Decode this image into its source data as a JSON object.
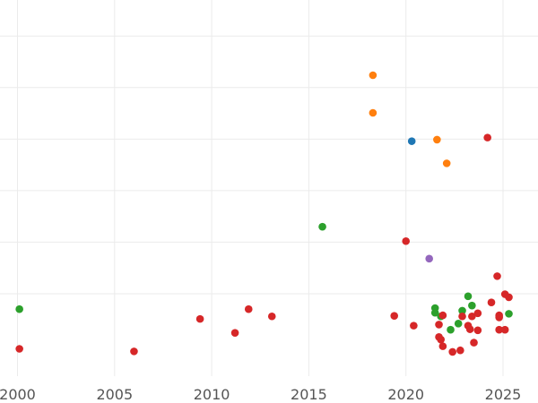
{
  "chart_data": {
    "type": "scatter",
    "title": "",
    "xlabel": "",
    "ylabel": "",
    "xlim": [
      1999.1,
      2026.8
    ],
    "ylim": [
      -0.6,
      6.7
    ],
    "grid": true,
    "x_ticks": [
      2000,
      2005,
      2010,
      2015,
      2020,
      2025
    ],
    "x_tick_labels": [
      "2000",
      "2005",
      "2010",
      "2015",
      "2020",
      "2025"
    ],
    "y_gridlines": [
      1,
      2,
      3,
      4,
      5,
      6
    ],
    "y_tick_labels_visible": false,
    "legend": "none",
    "colors": {
      "blue": "#1f77b4",
      "orange": "#ff7f0e",
      "green": "#2ca02c",
      "red": "#d62728",
      "purple": "#9467bd"
    },
    "series": [
      {
        "name": "blue",
        "points": [
          [
            2020.3,
            3.96
          ]
        ]
      },
      {
        "name": "orange",
        "points": [
          [
            2018.3,
            5.24
          ],
          [
            2018.3,
            4.51
          ],
          [
            2021.6,
            3.99
          ],
          [
            2022.1,
            3.53
          ]
        ]
      },
      {
        "name": "green",
        "points": [
          [
            2000.1,
            0.7
          ],
          [
            2015.7,
            2.3
          ],
          [
            2021.5,
            0.72
          ],
          [
            2021.5,
            0.63
          ],
          [
            2021.8,
            0.56
          ],
          [
            2022.3,
            0.3
          ],
          [
            2022.7,
            0.42
          ],
          [
            2022.9,
            0.67
          ],
          [
            2023.2,
            0.95
          ],
          [
            2023.4,
            0.77
          ],
          [
            2025.3,
            0.61
          ]
        ]
      },
      {
        "name": "red",
        "points": [
          [
            2000.1,
            -0.07
          ],
          [
            2006.0,
            -0.12
          ],
          [
            2009.4,
            0.51
          ],
          [
            2011.2,
            0.24
          ],
          [
            2011.9,
            0.7
          ],
          [
            2013.1,
            0.56
          ],
          [
            2019.4,
            0.57
          ],
          [
            2020.0,
            2.02
          ],
          [
            2020.4,
            0.38
          ],
          [
            2021.7,
            0.4
          ],
          [
            2021.7,
            0.16
          ],
          [
            2021.8,
            0.11
          ],
          [
            2021.9,
            -0.02
          ],
          [
            2021.9,
            0.58
          ],
          [
            2022.4,
            -0.13
          ],
          [
            2022.8,
            -0.1
          ],
          [
            2022.9,
            0.56
          ],
          [
            2023.2,
            0.38
          ],
          [
            2023.3,
            0.31
          ],
          [
            2023.4,
            0.56
          ],
          [
            2023.5,
            0.05
          ],
          [
            2023.7,
            0.62
          ],
          [
            2023.7,
            0.29
          ],
          [
            2024.2,
            4.03
          ],
          [
            2024.4,
            0.83
          ],
          [
            2024.7,
            1.34
          ],
          [
            2024.8,
            0.58
          ],
          [
            2024.8,
            0.54
          ],
          [
            2024.8,
            0.3
          ],
          [
            2025.1,
            0.99
          ],
          [
            2025.1,
            0.3
          ],
          [
            2025.3,
            0.93
          ]
        ]
      },
      {
        "name": "purple",
        "points": [
          [
            2021.2,
            1.68
          ]
        ]
      }
    ]
  }
}
